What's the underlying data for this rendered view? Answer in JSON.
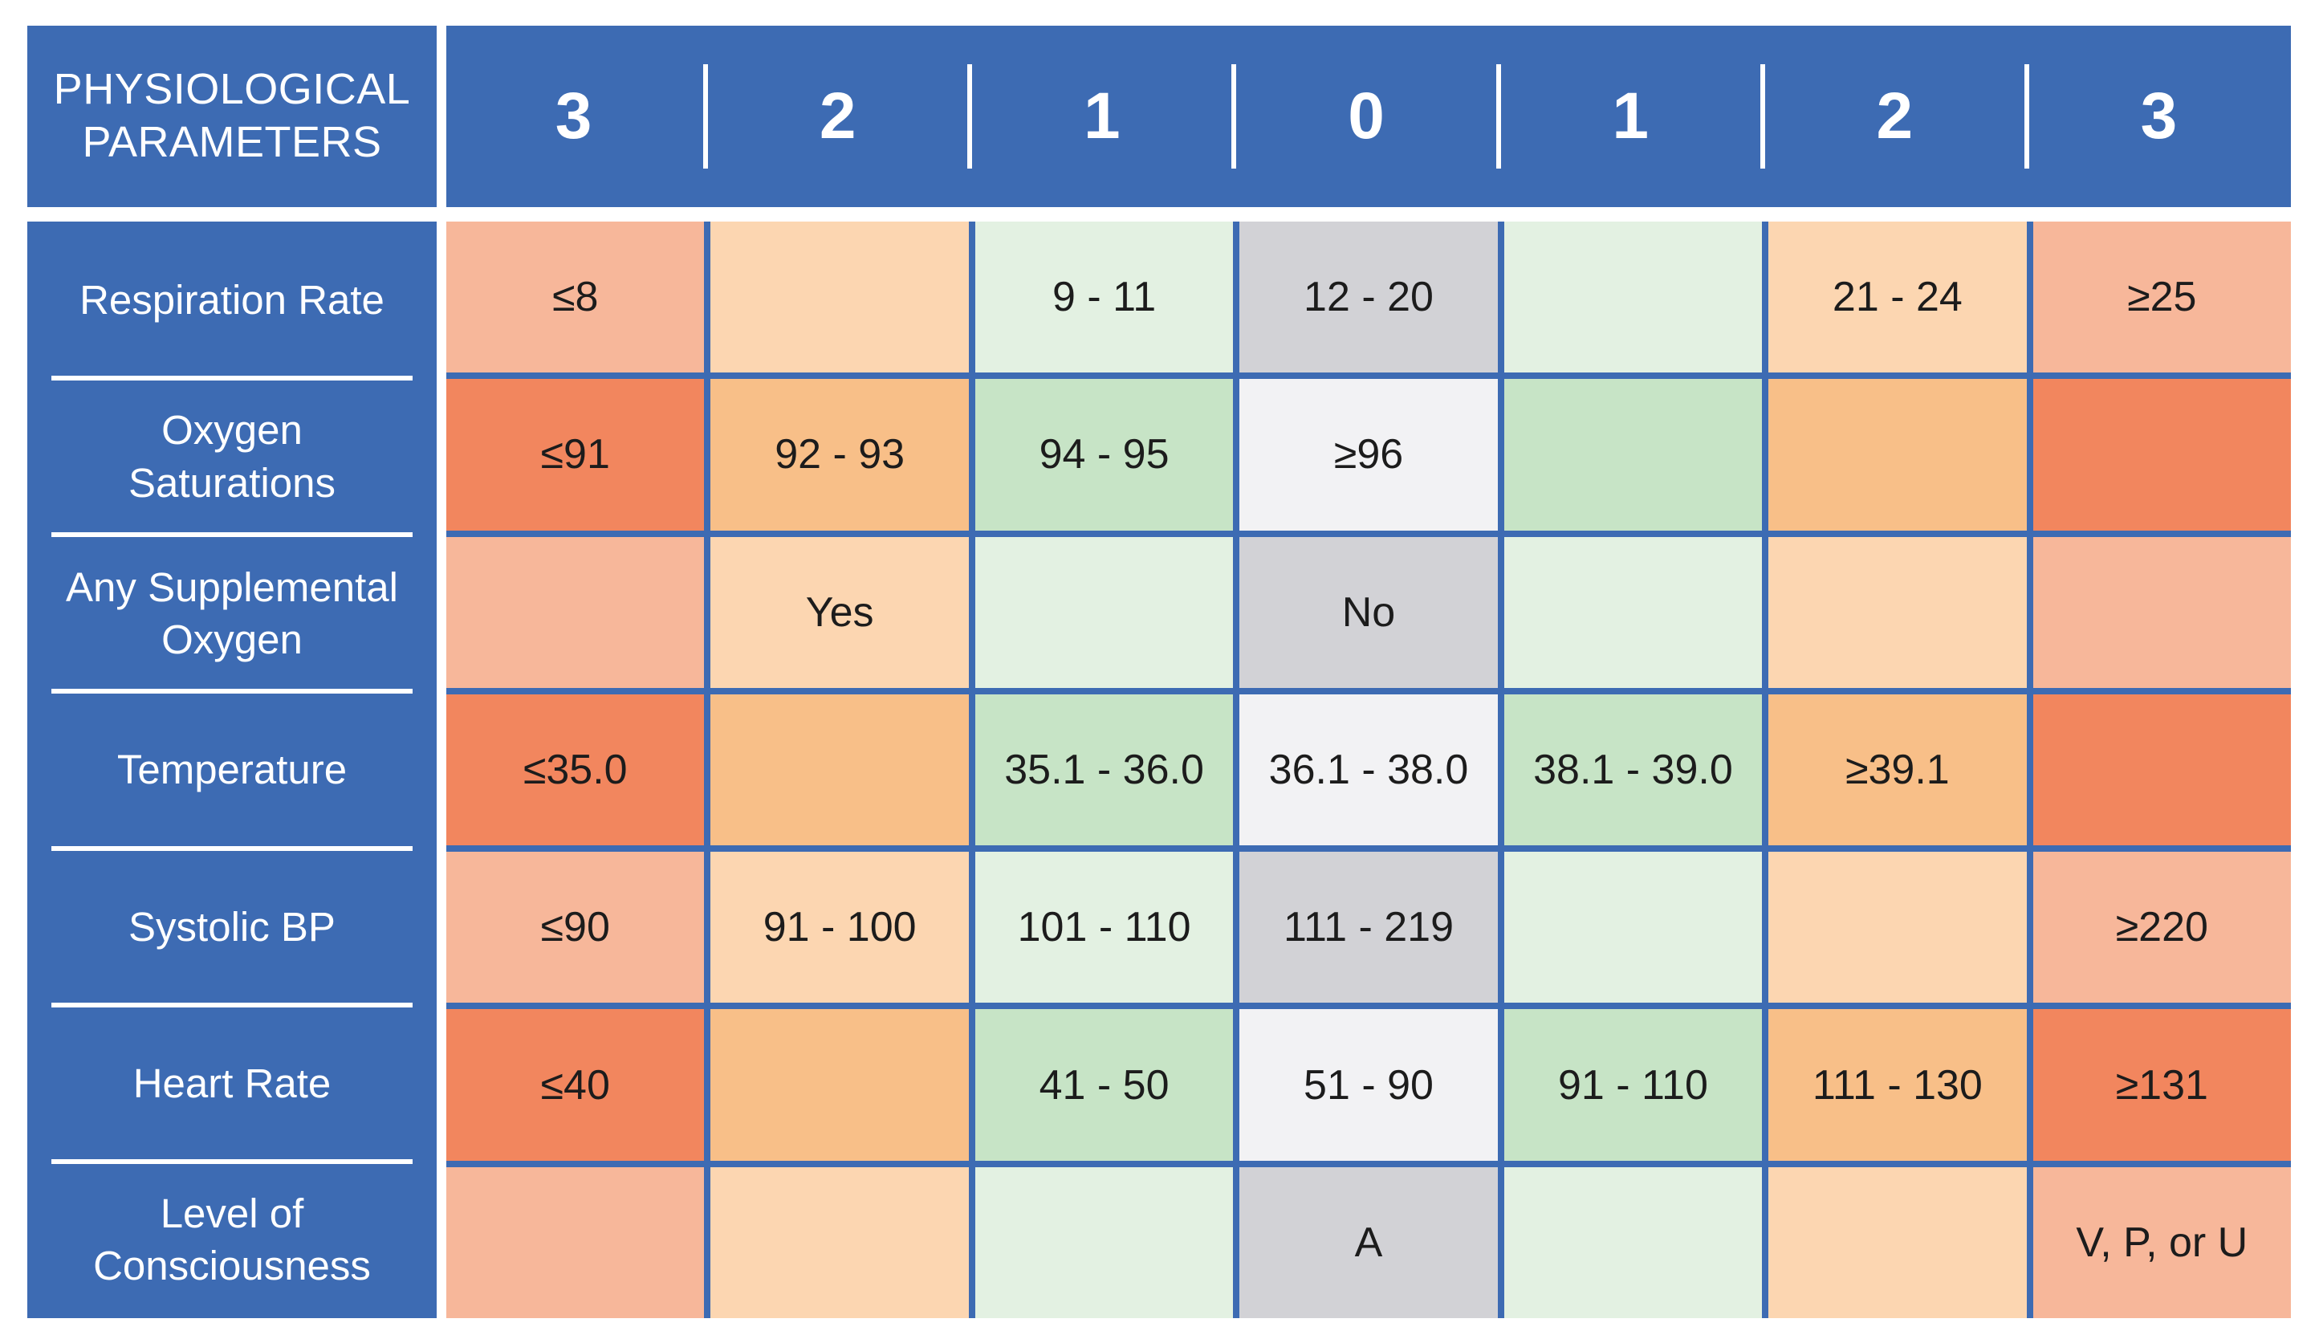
{
  "header": {
    "corner_line1": "PHYSIOLOGICAL",
    "corner_line2": "PARAMETERS",
    "scores": [
      "3",
      "2",
      "1",
      "0",
      "1",
      "2",
      "3"
    ]
  },
  "colors": {
    "frame_blue": "#3d6bb3",
    "red_light": "#f7b79a",
    "red_strong": "#f2865e",
    "orange_light": "#fcd6b1",
    "orange_strong": "#f8bf88",
    "green_light": "#e3f1e2",
    "green_strong": "#c7e4c6",
    "gray": "#d2d2d6",
    "white": "#f2f2f4"
  },
  "rows": [
    {
      "label_line1": "Respiration Rate",
      "label_line2": "",
      "cells": [
        "≤8",
        "",
        "9 - 11",
        "12 - 20",
        "",
        "21 - 24",
        "≥25"
      ],
      "shades": [
        "red_light",
        "orange_light",
        "green_light",
        "gray",
        "green_light",
        "orange_light",
        "red_light"
      ]
    },
    {
      "label_line1": "Oxygen",
      "label_line2": "Saturations",
      "cells": [
        "≤91",
        "92 - 93",
        "94 - 95",
        "≥96",
        "",
        "",
        ""
      ],
      "shades": [
        "red_strong",
        "orange_strong",
        "green_strong",
        "white",
        "green_strong",
        "orange_strong",
        "red_strong"
      ]
    },
    {
      "label_line1": "Any Supplemental",
      "label_line2": "Oxygen",
      "cells": [
        "",
        "Yes",
        "",
        "No",
        "",
        "",
        ""
      ],
      "shades": [
        "red_light",
        "orange_light",
        "green_light",
        "gray",
        "green_light",
        "orange_light",
        "red_light"
      ]
    },
    {
      "label_line1": "Temperature",
      "label_line2": "",
      "cells": [
        "≤35.0",
        "",
        "35.1 - 36.0",
        "36.1 - 38.0",
        "38.1 - 39.0",
        "≥39.1",
        ""
      ],
      "shades": [
        "red_strong",
        "orange_strong",
        "green_strong",
        "white",
        "green_strong",
        "orange_strong",
        "red_strong"
      ]
    },
    {
      "label_line1": "Systolic BP",
      "label_line2": "",
      "cells": [
        "≤90",
        "91 - 100",
        "101 - 110",
        "111 - 219",
        "",
        "",
        "≥220"
      ],
      "shades": [
        "red_light",
        "orange_light",
        "green_light",
        "gray",
        "green_light",
        "orange_light",
        "red_light"
      ]
    },
    {
      "label_line1": "Heart Rate",
      "label_line2": "",
      "cells": [
        "≤40",
        "",
        "41 - 50",
        "51 - 90",
        "91 - 110",
        "111 - 130",
        "≥131"
      ],
      "shades": [
        "red_strong",
        "orange_strong",
        "green_strong",
        "white",
        "green_strong",
        "orange_strong",
        "red_strong"
      ]
    },
    {
      "label_line1": "Level of",
      "label_line2": "Consciousness",
      "cells": [
        "",
        "",
        "",
        "A",
        "",
        "",
        "V, P, or U"
      ],
      "shades": [
        "red_light",
        "orange_light",
        "green_light",
        "gray",
        "green_light",
        "orange_light",
        "red_light"
      ]
    }
  ]
}
